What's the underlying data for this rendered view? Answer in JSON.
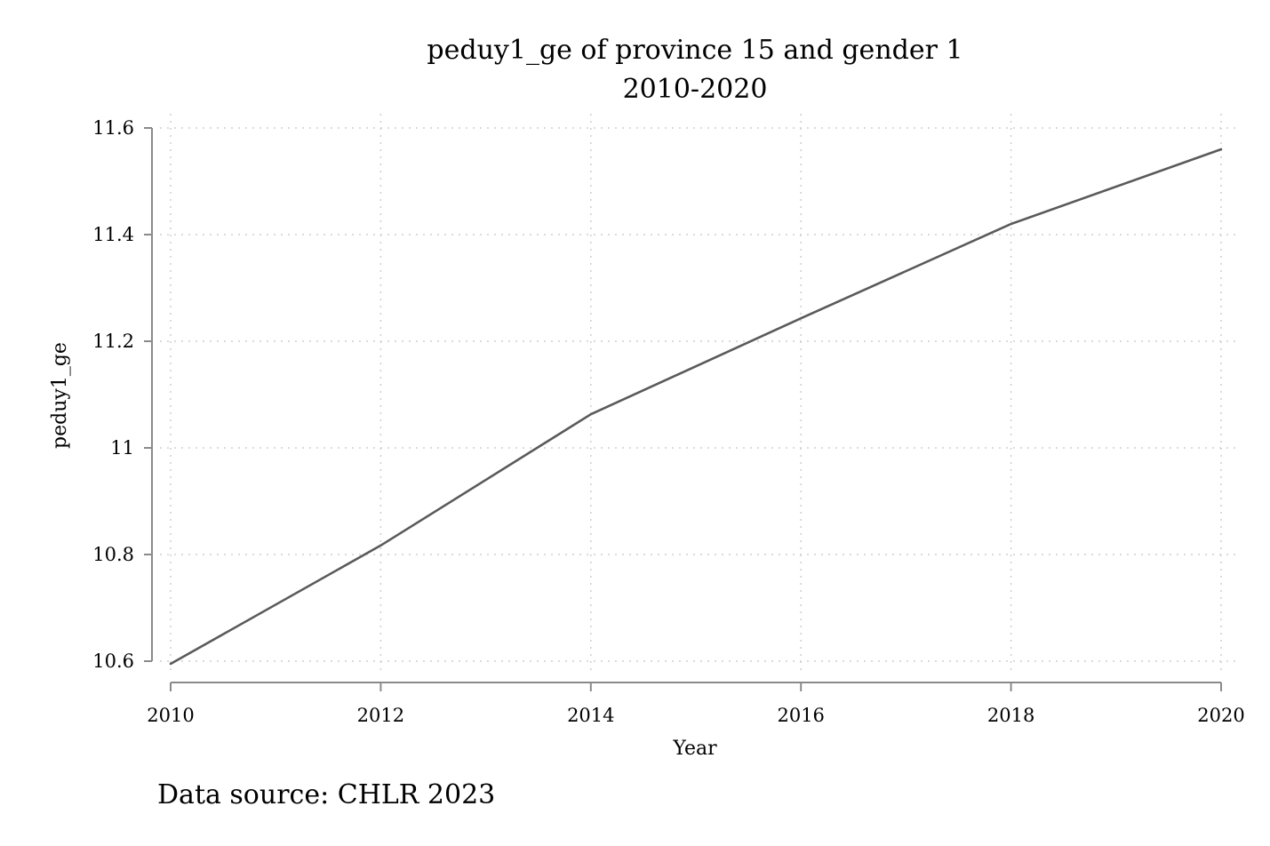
{
  "chart_data": {
    "type": "line",
    "title": "peduy1_ge of province 15 and gender 1",
    "subtitle": "2010-2020",
    "xlabel": "Year",
    "ylabel": "peduy1_ge",
    "x": [
      2010,
      2012,
      2014,
      2016,
      2018,
      2020
    ],
    "x_ticks": [
      "2010",
      "2012",
      "2014",
      "2016",
      "2018",
      "2020"
    ],
    "y_ticks": [
      "10.6",
      "10.8",
      "11",
      "11.2",
      "11.4",
      "11.6"
    ],
    "xlim": [
      2010,
      2020
    ],
    "ylim": [
      10.6,
      11.6
    ],
    "grid": true,
    "series": [
      {
        "color": "#5a5a5a",
        "values": [
          10.595,
          10.817,
          11.063,
          11.243,
          11.42,
          11.56
        ]
      }
    ]
  },
  "footer": {
    "source_text": "Data source: CHLR 2023"
  }
}
